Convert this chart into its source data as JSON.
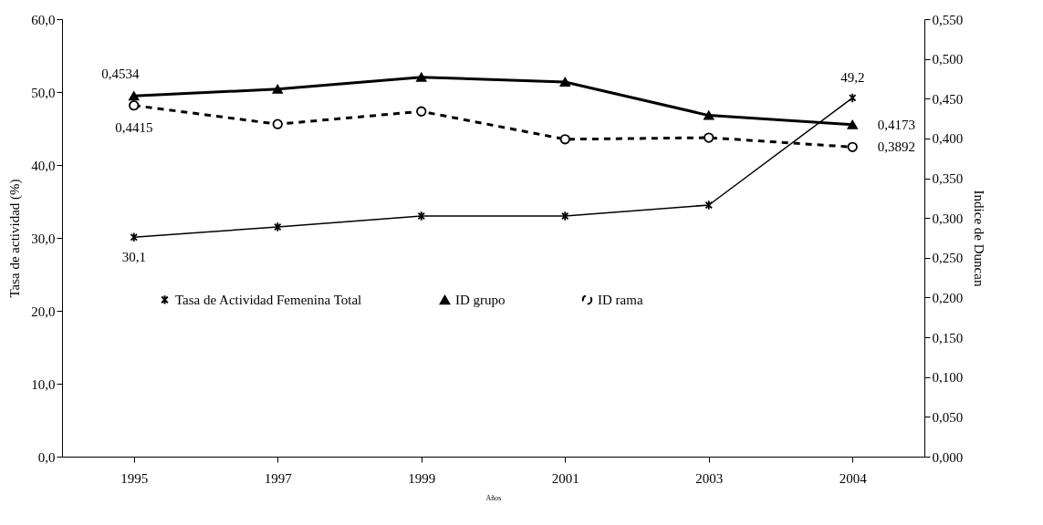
{
  "chart_data": {
    "type": "line",
    "xlabel": "Años",
    "ylabel": "Tasa de actividad (%)",
    "y2label": "Indice de Duncan",
    "categories": [
      "1995",
      "1997",
      "1999",
      "2001",
      "2003",
      "2004"
    ],
    "series": [
      {
        "name": "Tasa de Actividad Femenina Total",
        "color": "#000000",
        "marker": "cross",
        "line_style": "solid",
        "values": [
          30.1,
          31.5,
          33.0,
          33.0,
          34.5,
          49.2
        ],
        "value_labels": [
          "30,1",
          null,
          null,
          null,
          null,
          "49,2"
        ]
      },
      {
        "name": "ID grupo",
        "color": "#000000",
        "marker": "triangle",
        "line_style": "solid",
        "axis": "y2",
        "values": [
          0.4534,
          0.462,
          0.477,
          0.471,
          0.429,
          0.4173
        ],
        "value_labels": [
          "0,4534",
          null,
          null,
          null,
          null,
          "0,4173"
        ]
      },
      {
        "name": "ID rama",
        "color": "#000000",
        "marker": "circle",
        "line_style": "dashed",
        "axis": "y2",
        "values": [
          0.4415,
          0.418,
          0.434,
          0.399,
          0.401,
          0.3892
        ],
        "value_labels": [
          "0,4415",
          null,
          null,
          null,
          null,
          "0,3892"
        ]
      }
    ],
    "ylim": [
      0,
      60
    ],
    "yticks": [
      {
        "value": 0,
        "label": "0,0"
      },
      {
        "value": 10,
        "label": "10,0"
      },
      {
        "value": 20,
        "label": "20,0"
      },
      {
        "value": 30,
        "label": "30,0"
      },
      {
        "value": 40,
        "label": "40,0"
      },
      {
        "value": 50,
        "label": "50,0"
      },
      {
        "value": 60,
        "label": "60,0"
      }
    ],
    "y2lim": [
      0,
      0.55
    ],
    "y2ticks": [
      {
        "value": 0,
        "label": "0,000"
      },
      {
        "value": 0.05,
        "label": "0,050"
      },
      {
        "value": 0.1,
        "label": "0,100"
      },
      {
        "value": 0.15,
        "label": "0,150"
      },
      {
        "value": 0.2,
        "label": "0,200"
      },
      {
        "value": 0.25,
        "label": "0,250"
      },
      {
        "value": 0.3,
        "label": "0,300"
      },
      {
        "value": 0.35,
        "label": "0,350"
      },
      {
        "value": 0.4,
        "label": "0,400"
      },
      {
        "value": 0.45,
        "label": "0,450"
      },
      {
        "value": 0.5,
        "label": "0,500"
      },
      {
        "value": 0.55,
        "label": "0,550"
      }
    ],
    "legend": "left",
    "grid": false
  }
}
